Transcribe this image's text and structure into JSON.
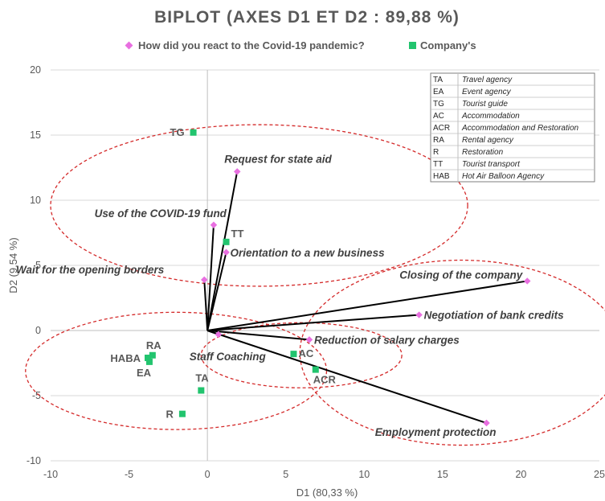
{
  "chart_data": {
    "type": "biplot",
    "title": "BIPLOT (AXES D1 ET D2 : 89,88 %)",
    "xlabel": "D1 (80,33 %)",
    "ylabel": "D2 (9,54 %)",
    "xlim": [
      -10,
      25
    ],
    "ylim": [
      -10,
      20
    ],
    "xticks": [
      -10,
      -5,
      0,
      5,
      10,
      15,
      20,
      25
    ],
    "yticks": [
      -10,
      -5,
      0,
      5,
      10,
      15,
      20
    ],
    "grid": "horizontal",
    "legend_position": "top",
    "series": [
      {
        "name": "How did you react to the Covid-19 pandemic?",
        "marker": "diamond",
        "color": "#e86fe0",
        "points": [
          {
            "label": "Request for state aid",
            "x": 1.9,
            "y": 12.2
          },
          {
            "label": "Use of the COVID-19 fund",
            "x": 0.4,
            "y": 8.1
          },
          {
            "label": "Orientation to a new business",
            "x": 1.2,
            "y": 6.0
          },
          {
            "label": "Wait for the opening borders",
            "x": -0.2,
            "y": 3.9
          },
          {
            "label": "Closing of the company",
            "x": 20.4,
            "y": 3.8
          },
          {
            "label": "Negotiation of bank credits",
            "x": 13.5,
            "y": 1.2
          },
          {
            "label": "Reduction of salary charges",
            "x": 6.5,
            "y": -0.7
          },
          {
            "label": "Staff Coaching",
            "x": 0.7,
            "y": -0.3
          },
          {
            "label": "Employment protection",
            "x": 17.8,
            "y": -7.1
          }
        ]
      },
      {
        "name": "Company's",
        "marker": "square",
        "color": "#22c46e",
        "points": [
          {
            "label": "TG",
            "x": -0.9,
            "y": 15.2
          },
          {
            "label": "TT",
            "x": 1.2,
            "y": 6.8
          },
          {
            "label": "RA",
            "x": -3.5,
            "y": -1.9
          },
          {
            "label": "HABA",
            "x": -3.8,
            "y": -2.1
          },
          {
            "label": "EA",
            "x": -3.7,
            "y": -2.4
          },
          {
            "label": "TA",
            "x": -0.4,
            "y": -4.6
          },
          {
            "label": "R",
            "x": -1.6,
            "y": -6.4
          },
          {
            "label": "AC",
            "x": 5.5,
            "y": -1.8
          },
          {
            "label": "ACR",
            "x": 6.9,
            "y": -3.0
          }
        ]
      }
    ],
    "ellipses": [
      {
        "cx": 3.3,
        "cy": 9.6,
        "rx": 13.3,
        "ry": 6.2
      },
      {
        "cx": 16.2,
        "cy": -1.7,
        "rx": 10.3,
        "ry": 7.1
      },
      {
        "cx": -2.0,
        "cy": -3.1,
        "rx": 9.6,
        "ry": 4.5
      },
      {
        "cx": 6.0,
        "cy": -1.9,
        "rx": 6.4,
        "ry": 2.5
      }
    ],
    "table": [
      {
        "code": "TA",
        "name": "Travel agency"
      },
      {
        "code": "EA",
        "name": "Event agency"
      },
      {
        "code": "TG",
        "name": "Tourist guide"
      },
      {
        "code": "AC",
        "name": "Accommodation"
      },
      {
        "code": "ACR",
        "name": "Accommodation and Restoration"
      },
      {
        "code": "RA",
        "name": "Rental agency"
      },
      {
        "code": "R",
        "name": "Restoration"
      },
      {
        "code": "TT",
        "name": "Tourist transport"
      },
      {
        "code": "HAB",
        "name": "Hot Air Balloon Agency"
      }
    ]
  }
}
